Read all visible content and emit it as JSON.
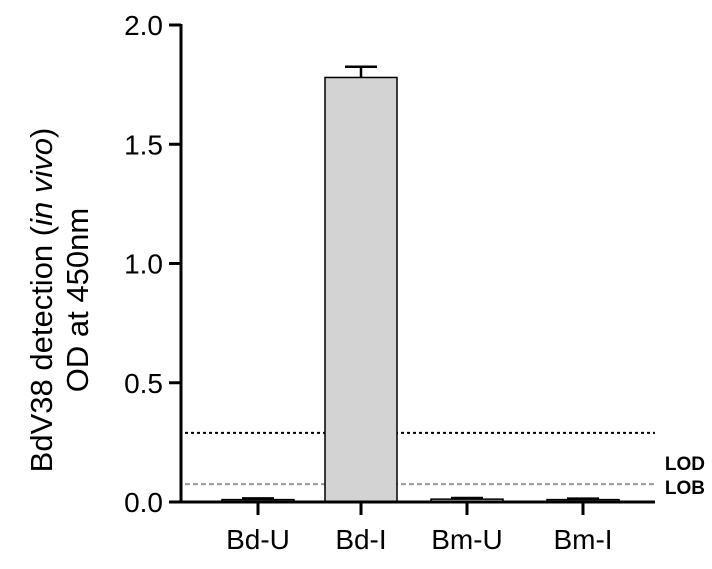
{
  "chart_data": {
    "type": "bar",
    "title": "",
    "ylabel": {
      "line1_prefix": "BdV38 detection (",
      "line1_italic": "in vivo",
      "line1_suffix": ")",
      "line2": "OD at 450nm"
    },
    "xlabel": "",
    "ylim": [
      0,
      2.0
    ],
    "yticks": [
      "0.0",
      "0.5",
      "1.0",
      "1.5",
      "2.0"
    ],
    "categories": [
      "Bd-U",
      "Bd-I",
      "Bm-U",
      "Bm-I"
    ],
    "values": [
      0.01,
      1.78,
      0.012,
      0.01
    ],
    "errors": [
      0.005,
      0.045,
      0.005,
      0.004
    ],
    "bar_fill": "#d3d3d3",
    "bar_stroke": "#000000",
    "reference_lines": [
      {
        "label": "LOD",
        "value": 0.29,
        "color": "#000000",
        "style": "dotted"
      },
      {
        "label": "LOB",
        "value": 0.075,
        "color": "#999999",
        "style": "dashed"
      }
    ],
    "grid": false,
    "legend": "none"
  }
}
